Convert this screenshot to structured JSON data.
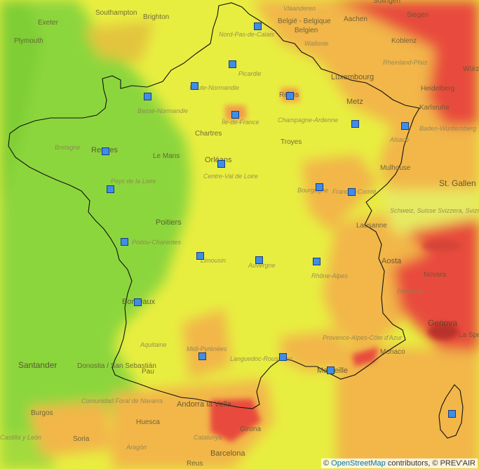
{
  "attribution": {
    "prefix": "© ",
    "osm_link": "OpenStreetMap",
    "suffix": " contributors, © PREV'AIR"
  },
  "colors": {
    "low": "#8cd63c",
    "moderate": "#e8ee40",
    "elevated": "#f2b64a",
    "high": "#e84c3d",
    "very_high": "#c0382c",
    "station_fill": "#3e8de8"
  },
  "place_labels": [
    {
      "id": "southampton",
      "text": "Southampton"
    },
    {
      "id": "brighton",
      "text": "Brighton"
    },
    {
      "id": "exeter",
      "text": "Exeter"
    },
    {
      "id": "plymouth",
      "text": "Plymouth"
    },
    {
      "id": "vlaanderen",
      "text": "Vlaanderen"
    },
    {
      "id": "belgie",
      "text": "België - Belgique"
    },
    {
      "id": "belgien",
      "text": "Belgien"
    },
    {
      "id": "wallonie",
      "text": "Wallonie"
    },
    {
      "id": "aachen",
      "text": "Aachen"
    },
    {
      "id": "koblenz",
      "text": "Koblenz"
    },
    {
      "id": "rheinland",
      "text": "Rheinland-Pfalz"
    },
    {
      "id": "siegen",
      "text": "Siegen"
    },
    {
      "id": "solingen",
      "text": "Solingen"
    },
    {
      "id": "luxembourg",
      "text": "Luxembourg"
    },
    {
      "id": "heidelberg",
      "text": "Heidelberg"
    },
    {
      "id": "wurz",
      "text": "Würz"
    },
    {
      "id": "karlsruhe",
      "text": "Karlsruhe"
    },
    {
      "id": "bw",
      "text": "Baden-Württemberg"
    },
    {
      "id": "nordpasdecalais",
      "text": "Nord-Pas-de-Calais"
    },
    {
      "id": "picardie",
      "text": "Picardie"
    },
    {
      "id": "hautenormandie",
      "text": "Haute-Normandie"
    },
    {
      "id": "bassenormandie",
      "text": "Basse-Normandie"
    },
    {
      "id": "reims",
      "text": "Reims"
    },
    {
      "id": "metz",
      "text": "Metz"
    },
    {
      "id": "champagne",
      "text": "Champagne-Ardenne"
    },
    {
      "id": "iledefrance",
      "text": "Île-de-France"
    },
    {
      "id": "chartres",
      "text": "Chartres"
    },
    {
      "id": "troyes",
      "text": "Troyes"
    },
    {
      "id": "alsace",
      "text": "Alsace"
    },
    {
      "id": "bretagne",
      "text": "Bretagne"
    },
    {
      "id": "rennes",
      "text": "Rennes"
    },
    {
      "id": "lemans",
      "text": "Le Mans"
    },
    {
      "id": "orleans",
      "text": "Orléans"
    },
    {
      "id": "centre",
      "text": "Centre-Val de Loire"
    },
    {
      "id": "paysdelaloire",
      "text": "Pays de la Loire"
    },
    {
      "id": "mulhouse",
      "text": "Mulhouse"
    },
    {
      "id": "stgallen",
      "text": "St. Gallen"
    },
    {
      "id": "bourgogne",
      "text": "Bourgogne"
    },
    {
      "id": "franchecomte",
      "text": "Franche-Comté"
    },
    {
      "id": "poitiers",
      "text": "Poitiers"
    },
    {
      "id": "poitou",
      "text": "Poitou-Charentes"
    },
    {
      "id": "lausanne",
      "text": "Lausanne"
    },
    {
      "id": "suisse",
      "text": "Schweiz, Suisse Svizzera, Svizra"
    },
    {
      "id": "limousin",
      "text": "Limousin"
    },
    {
      "id": "auvergne",
      "text": "Auvergne"
    },
    {
      "id": "rhonealpes",
      "text": "Rhône-Alpes"
    },
    {
      "id": "aosta",
      "text": "Aosta"
    },
    {
      "id": "novara",
      "text": "Novara"
    },
    {
      "id": "piemonte",
      "text": "Piemonte"
    },
    {
      "id": "bordeaux",
      "text": "Bordeaux"
    },
    {
      "id": "aquitaine",
      "text": "Aquitaine"
    },
    {
      "id": "genova",
      "text": "Genova"
    },
    {
      "id": "laspezia",
      "text": "La Spe"
    },
    {
      "id": "midipyrenees",
      "text": "Midi-Pyrénées"
    },
    {
      "id": "provence",
      "text": "Provence-Alpes-Côte d'Azur"
    },
    {
      "id": "monaco",
      "text": "Monaco"
    },
    {
      "id": "santander",
      "text": "Santander"
    },
    {
      "id": "donostia",
      "text": "Donostia / San Sebastián"
    },
    {
      "id": "pau",
      "text": "Pau"
    },
    {
      "id": "languedoc",
      "text": "Languedoc-Roussillon"
    },
    {
      "id": "marseille",
      "text": "Marseille"
    },
    {
      "id": "navarra",
      "text": "Comunidad Foral de Navarra"
    },
    {
      "id": "andorra",
      "text": "Andorra la Vella"
    },
    {
      "id": "burgos",
      "text": "Burgos"
    },
    {
      "id": "huesca",
      "text": "Huesca"
    },
    {
      "id": "girona",
      "text": "Girona"
    },
    {
      "id": "castilla",
      "text": "Castilla y León"
    },
    {
      "id": "soria",
      "text": "Soria"
    },
    {
      "id": "aragon",
      "text": "Aragón"
    },
    {
      "id": "catalunya",
      "text": "Catalunya"
    },
    {
      "id": "barcelona",
      "text": "Barcelona"
    },
    {
      "id": "reus",
      "text": "Reus"
    }
  ],
  "stations": [
    {
      "id": "lille"
    },
    {
      "id": "rouen"
    },
    {
      "id": "amiens"
    },
    {
      "id": "caen"
    },
    {
      "id": "reims"
    },
    {
      "id": "paris"
    },
    {
      "id": "metz"
    },
    {
      "id": "strasbourg"
    },
    {
      "id": "rennes"
    },
    {
      "id": "orleans"
    },
    {
      "id": "nantes"
    },
    {
      "id": "dijon"
    },
    {
      "id": "besancon"
    },
    {
      "id": "la-rochelle"
    },
    {
      "id": "limoges"
    },
    {
      "id": "clermont"
    },
    {
      "id": "lyon"
    },
    {
      "id": "bordeaux"
    },
    {
      "id": "toulouse"
    },
    {
      "id": "montpellier"
    },
    {
      "id": "marseille"
    },
    {
      "id": "ajaccio"
    }
  ]
}
